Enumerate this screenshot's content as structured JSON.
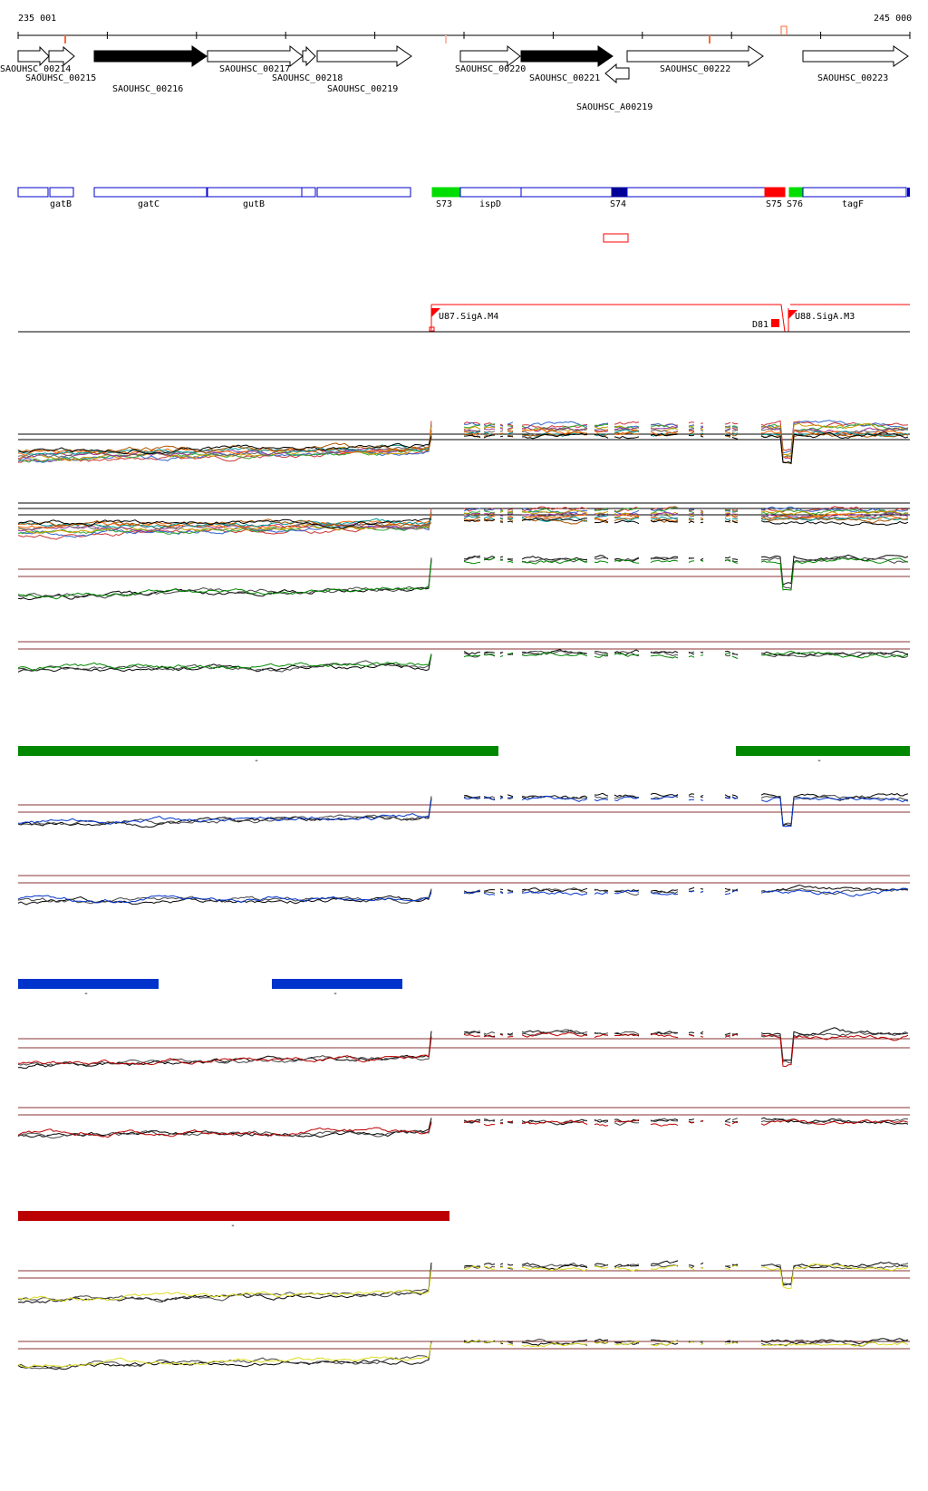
{
  "coordinates": {
    "start_label": "235 001",
    "end_label": "245 000"
  },
  "genes": [
    {
      "name": "SAOUHSC_00214",
      "label_row": 0,
      "filled": false,
      "strand": "+"
    },
    {
      "name": "SAOUHSC_00215",
      "label_row": 1,
      "filled": false,
      "strand": "+"
    },
    {
      "name": "SAOUHSC_00216",
      "label_row": 2,
      "filled": true,
      "strand": "+"
    },
    {
      "name": "SAOUHSC_00217",
      "label_row": 0,
      "filled": false,
      "strand": "+"
    },
    {
      "name": "SAOUHSC_00218",
      "label_row": 1,
      "filled": false,
      "strand": "+"
    },
    {
      "name": "SAOUHSC_00219",
      "label_row": 2,
      "filled": false,
      "strand": "+"
    },
    {
      "name": "SAOUHSC_00220",
      "label_row": 0,
      "filled": false,
      "strand": "+"
    },
    {
      "name": "SAOUHSC_00221",
      "label_row": 1,
      "filled": true,
      "strand": "+"
    },
    {
      "name": "SAOUHSC_A00219",
      "label_row": 4,
      "filled": false,
      "strand": "-"
    },
    {
      "name": "SAOUHSC_00222",
      "label_row": 0,
      "filled": false,
      "strand": "+"
    },
    {
      "name": "SAOUHSC_00223",
      "label_row": 1,
      "filled": false,
      "strand": "+"
    }
  ],
  "features": [
    {
      "label": "",
      "color": "#0000cc"
    },
    {
      "label": "gatB",
      "color": "#0000cc"
    },
    {
      "label": "gatC",
      "color": "#0000cc"
    },
    {
      "label": "gutB",
      "color": "#0000cc"
    },
    {
      "label": "",
      "color": "#0000cc"
    },
    {
      "label": "",
      "color": "#0000cc"
    },
    {
      "label": "S73",
      "color": "#00dd00"
    },
    {
      "label": "ispD",
      "color": "#0000cc"
    },
    {
      "label": "",
      "color": "#0000cc"
    },
    {
      "label": "S74",
      "color": "#000099"
    },
    {
      "label": "",
      "color": "#0000cc"
    },
    {
      "label": "S75",
      "color": "#ff0000"
    },
    {
      "label": "S76",
      "color": "#00dd00"
    },
    {
      "label": "tagF",
      "color": "#0000cc"
    }
  ],
  "promoters": [
    {
      "label": "U87.SigA.M4"
    },
    {
      "label": "U88.SigA.M3"
    }
  ],
  "terminators": [
    {
      "label": "D81"
    }
  ],
  "condition_groups": [
    {
      "color": "#008800",
      "bar_labels": [
        "-",
        "-"
      ]
    },
    {
      "color": "#0033cc",
      "bar_labels": [
        "-",
        "-"
      ]
    },
    {
      "color": "#bb0000",
      "bar_labels": [
        "-"
      ]
    },
    {
      "color": "#dddd22",
      "bar_labels": []
    }
  ]
}
